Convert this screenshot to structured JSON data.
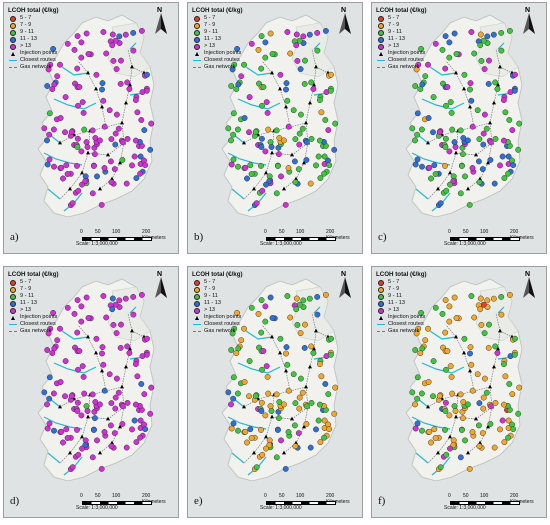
{
  "legend": {
    "title": "LCOH total (€/kg)",
    "classes": [
      {
        "label": "5 - 7",
        "color": "#e63b2e"
      },
      {
        "label": "7 - 9",
        "color": "#f2a72b"
      },
      {
        "label": "9 - 11",
        "color": "#3ec63e"
      },
      {
        "label": "11 - 13",
        "color": "#2f6fd6"
      },
      {
        "label": "> 13",
        "color": "#d22fd6"
      }
    ],
    "injection_label": "Injection points",
    "routes_label": "Closest routes",
    "gas_label": "Gas network",
    "routes_color": "#29b7cf",
    "gas_color": "#7a7a7a"
  },
  "north_label": "N",
  "scale": {
    "ticks": [
      "0",
      "50",
      "100",
      "200 Kilometers"
    ],
    "text": "Scale: 1:3,000,000"
  },
  "panels": [
    {
      "label": "a)",
      "mix": [
        0.0,
        0.0,
        0.03,
        0.12,
        0.85
      ]
    },
    {
      "label": "b)",
      "mix": [
        0.0,
        0.08,
        0.45,
        0.27,
        0.2
      ]
    },
    {
      "label": "c)",
      "mix": [
        0.0,
        0.06,
        0.5,
        0.26,
        0.18
      ]
    },
    {
      "label": "d)",
      "mix": [
        0.0,
        0.0,
        0.01,
        0.09,
        0.9
      ]
    },
    {
      "label": "e)",
      "mix": [
        0.0,
        0.42,
        0.4,
        0.12,
        0.06
      ]
    },
    {
      "label": "f)",
      "mix": [
        0.02,
        0.55,
        0.33,
        0.07,
        0.03
      ]
    }
  ]
}
